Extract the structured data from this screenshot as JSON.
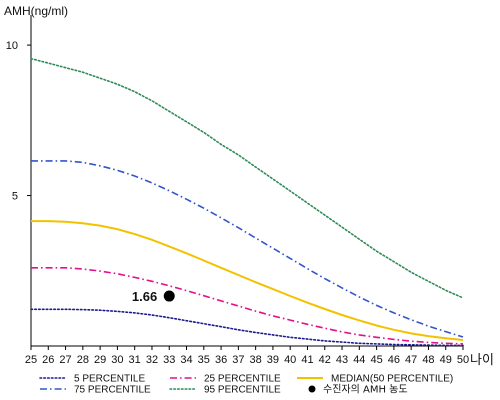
{
  "chart_data": {
    "type": "line",
    "ylabel": "AMH(ng/ml)",
    "xlabel": "나이",
    "x": [
      25,
      26,
      27,
      28,
      29,
      30,
      31,
      32,
      33,
      34,
      35,
      36,
      37,
      38,
      39,
      40,
      41,
      42,
      43,
      44,
      45,
      46,
      47,
      48,
      49,
      50
    ],
    "xlim": [
      25,
      50
    ],
    "ylim": [
      0,
      11
    ],
    "yticks": [
      5,
      10
    ],
    "grid": false,
    "legend_position": "bottom",
    "series": [
      {
        "name": "5 PERCENTILE",
        "color": "#1b1b8f",
        "style": "dotted",
        "values": [
          1.22,
          1.22,
          1.22,
          1.21,
          1.19,
          1.15,
          1.1,
          1.03,
          0.94,
          0.84,
          0.74,
          0.64,
          0.54,
          0.45,
          0.37,
          0.29,
          0.23,
          0.17,
          0.13,
          0.09,
          0.07,
          0.05,
          0.04,
          0.03,
          0.02,
          0.02
        ]
      },
      {
        "name": "25 PERCENTILE",
        "color": "#e0118a",
        "style": "dashdot",
        "values": [
          2.6,
          2.6,
          2.6,
          2.56,
          2.49,
          2.4,
          2.28,
          2.15,
          2.0,
          1.84,
          1.67,
          1.5,
          1.33,
          1.16,
          1.0,
          0.86,
          0.72,
          0.59,
          0.47,
          0.37,
          0.29,
          0.22,
          0.16,
          0.12,
          0.09,
          0.07
        ]
      },
      {
        "name": "MEDIAN(50 PERCENTILE)",
        "color": "#f2c200",
        "style": "solid",
        "values": [
          4.15,
          4.15,
          4.13,
          4.08,
          4.0,
          3.88,
          3.72,
          3.53,
          3.31,
          3.08,
          2.84,
          2.6,
          2.36,
          2.12,
          1.89,
          1.66,
          1.44,
          1.23,
          1.03,
          0.85,
          0.68,
          0.54,
          0.42,
          0.33,
          0.26,
          0.2
        ]
      },
      {
        "name": "75 PERCENTILE",
        "color": "#3355cc",
        "style": "dashdot",
        "values": [
          6.15,
          6.15,
          6.15,
          6.1,
          5.99,
          5.84,
          5.65,
          5.42,
          5.16,
          4.88,
          4.58,
          4.26,
          3.93,
          3.59,
          3.25,
          2.91,
          2.57,
          2.24,
          1.93,
          1.63,
          1.35,
          1.1,
          0.87,
          0.66,
          0.48,
          0.3
        ]
      },
      {
        "name": "95 PERCENTILE",
        "color": "#2e8b57",
        "style": "dotted",
        "values": [
          9.55,
          9.4,
          9.25,
          9.1,
          8.9,
          8.7,
          8.45,
          8.15,
          7.8,
          7.45,
          7.1,
          6.7,
          6.35,
          5.95,
          5.55,
          5.15,
          4.75,
          4.35,
          3.95,
          3.55,
          3.15,
          2.8,
          2.45,
          2.15,
          1.85,
          1.6
        ]
      }
    ],
    "marker": {
      "name": "수진자의 AMH 농도",
      "x": 33,
      "y": 1.66,
      "label": "1.66",
      "color": "#000000"
    }
  }
}
